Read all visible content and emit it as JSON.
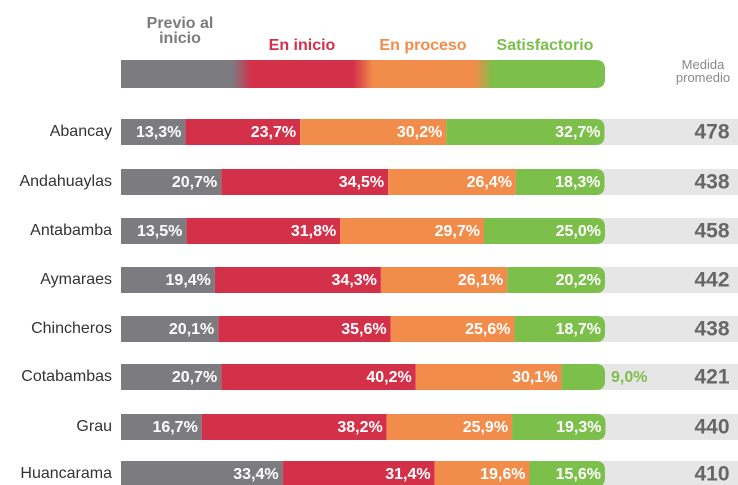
{
  "chart_data": {
    "type": "stacked_bar_horizontal",
    "categories": [
      "Abancay",
      "Andahuaylas",
      "Antabamba",
      "Aymaraes",
      "Chincheros",
      "Cotabambas",
      "Grau",
      "Huancarama"
    ],
    "xlim": [
      0,
      100
    ],
    "series": [
      {
        "name": "Previo al inicio",
        "color": "#7b7b80",
        "values": [
          13.3,
          20.7,
          13.5,
          19.4,
          20.1,
          20.7,
          16.7,
          33.4
        ],
        "value_labels": [
          "13,3%",
          "20,7%",
          "13,5%",
          "19,4%",
          "20,1%",
          "20,7%",
          "16,7%",
          "33,4%"
        ]
      },
      {
        "name": "En inicio",
        "color": "#d3304a",
        "values": [
          23.7,
          34.5,
          31.8,
          34.3,
          35.6,
          40.2,
          38.2,
          31.4
        ],
        "value_labels": [
          "23,7%",
          "34,5%",
          "31,8%",
          "34,3%",
          "35,6%",
          "40,2%",
          "38,2%",
          "31,4%"
        ]
      },
      {
        "name": "En proceso",
        "color": "#f28c4a",
        "values": [
          30.2,
          26.4,
          29.7,
          26.1,
          25.6,
          30.1,
          25.9,
          19.6
        ],
        "value_labels": [
          "30,2%",
          "26,4%",
          "29,7%",
          "26,1%",
          "25,6%",
          "30,1%",
          "25,9%",
          "19,6%"
        ]
      },
      {
        "name": "Satisfactorio",
        "color": "#7cbf4b",
        "values": [
          32.7,
          18.3,
          25.0,
          20.2,
          18.7,
          9.0,
          19.3,
          15.6
        ],
        "value_labels": [
          "32,7%",
          "18,3%",
          "25,0%",
          "20,2%",
          "18,7%",
          "9,0%",
          "19,3%",
          "15,6%"
        ]
      }
    ],
    "mean": {
      "name": "Medida promedio",
      "values": [
        478,
        438,
        458,
        442,
        438,
        421,
        440,
        410
      ]
    }
  }
}
